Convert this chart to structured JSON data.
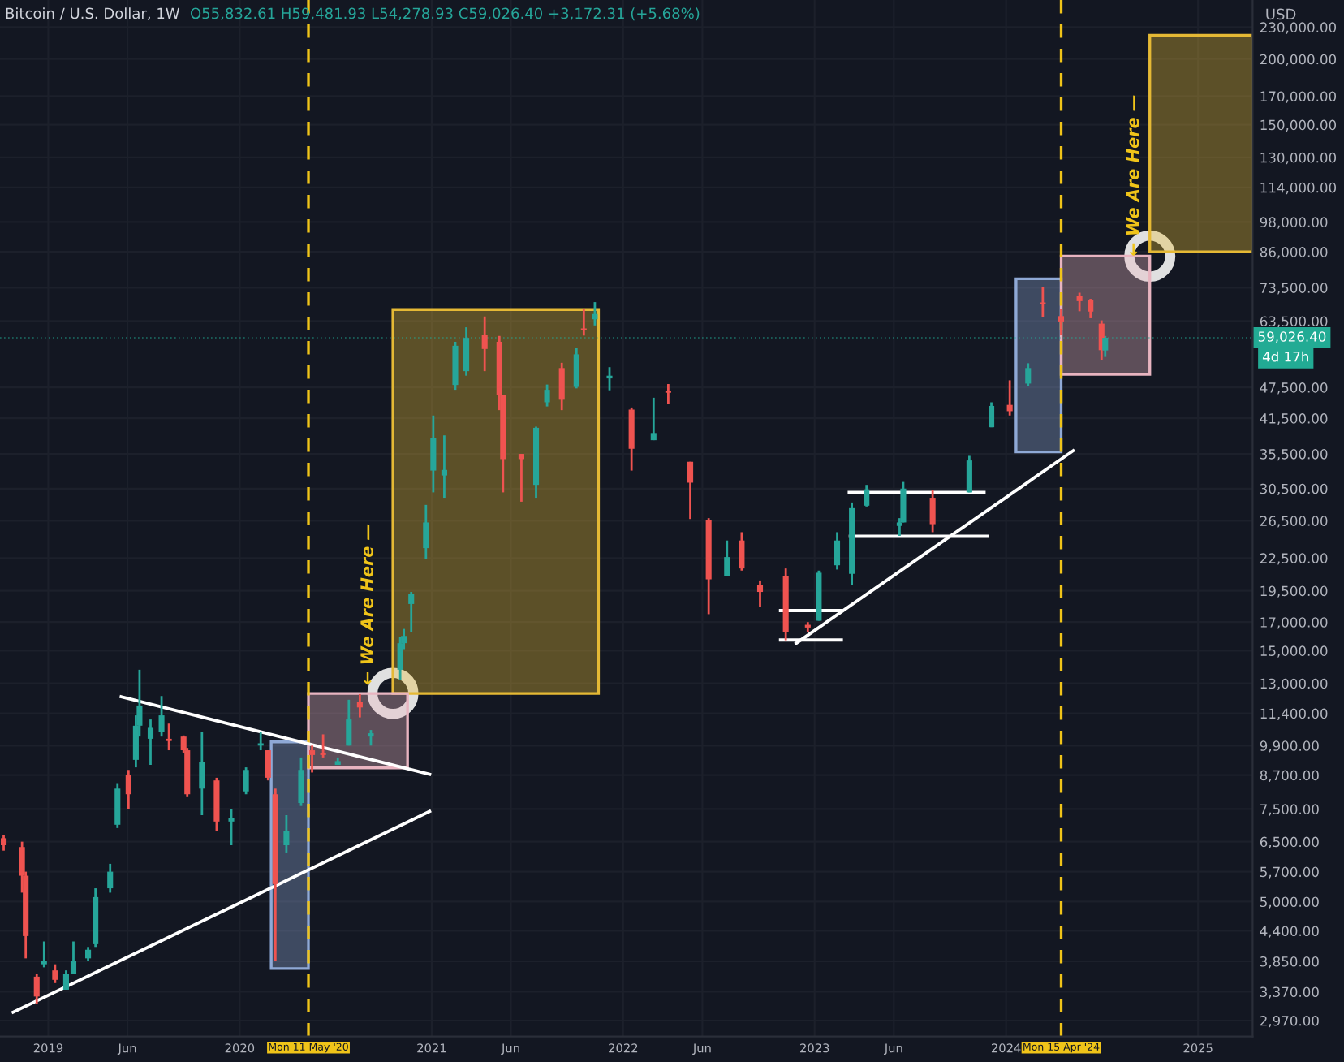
{
  "chart_data": {
    "type": "candlestick",
    "title": "Bitcoin / U.S. Dollar, 1W",
    "subtitle": "O55,832.61 H59,481.93 L54,278.93 C59,026.40 +3,172.31 (+5.68%)",
    "log": "y",
    "grid": true,
    "xlim": [
      "2018-10-01",
      "2025-04-15"
    ],
    "ylim": [
      2770,
      259000
    ],
    "xticks": [
      {
        "value": "2019-01-01",
        "label": "2019"
      },
      {
        "value": "2019-06-01",
        "label": "Jun"
      },
      {
        "value": "2020-01-01",
        "label": "2020"
      },
      {
        "value": "2021-01-01",
        "label": "2021"
      },
      {
        "value": "2021-06-01",
        "label": "Jun"
      },
      {
        "value": "2022-01-01",
        "label": "2022"
      },
      {
        "value": "2022-06-01",
        "label": "Jun"
      },
      {
        "value": "2023-01-01",
        "label": "2023"
      },
      {
        "value": "2023-06-01",
        "label": "Jun"
      },
      {
        "value": "2024-01-01",
        "label": "2024"
      },
      {
        "value": "2025-01-01",
        "label": "2025"
      }
    ],
    "yticks": [
      {
        "value": 230000,
        "label": "230,000.00"
      },
      {
        "value": 200000,
        "label": "200,000.00"
      },
      {
        "value": 170000,
        "label": "170,000.00"
      },
      {
        "value": 150000,
        "label": "150,000.00"
      },
      {
        "value": 130000,
        "label": "130,000.00"
      },
      {
        "value": 114000,
        "label": "114,000.00"
      },
      {
        "value": 98000,
        "label": "98,000.00"
      },
      {
        "value": 86000,
        "label": "86,000.00"
      },
      {
        "value": 73500,
        "label": "73,500.00"
      },
      {
        "value": 63500,
        "label": "63,500.00"
      },
      {
        "value": 47500,
        "label": "47,500.00"
      },
      {
        "value": 41500,
        "label": "41,500.00"
      },
      {
        "value": 35500,
        "label": "35,500.00"
      },
      {
        "value": 30500,
        "label": "30,500.00"
      },
      {
        "value": 26500,
        "label": "26,500.00"
      },
      {
        "value": 22500,
        "label": "22,500.00"
      },
      {
        "value": 19500,
        "label": "19,500.00"
      },
      {
        "value": 17000,
        "label": "17,000.00"
      },
      {
        "value": 15000,
        "label": "15,000.00"
      },
      {
        "value": 13000,
        "label": "13,000.00"
      },
      {
        "value": 11400,
        "label": "11,400.00"
      },
      {
        "value": 9900,
        "label": "9,900.00"
      },
      {
        "value": 8700,
        "label": "8,700.00"
      },
      {
        "value": 7500,
        "label": "7,500.00"
      },
      {
        "value": 6500,
        "label": "6,500.00"
      },
      {
        "value": 5700,
        "label": "5,700.00"
      },
      {
        "value": 5000,
        "label": "5,000.00"
      },
      {
        "value": 4400,
        "label": "4,400.00"
      },
      {
        "value": 3850,
        "label": "3,850.00"
      },
      {
        "value": 3370,
        "label": "3,370.00"
      },
      {
        "value": 2970,
        "label": "2,970.00"
      }
    ],
    "series": [
      {
        "type": "area",
        "x": [
          "2020-03-01",
          "2020-03-01",
          "2020-05-11",
          "2020-05-11",
          "2020-03-01"
        ],
        "values": [
          3730,
          10060,
          10060,
          3730,
          3730
        ],
        "color": "#8fa9d6"
      },
      {
        "type": "area",
        "x": [
          "2020-10-19",
          "2020-10-19",
          "2021-11-15",
          "2021-11-15",
          "2020-10-19"
        ],
        "values": [
          12440,
          66800,
          66800,
          12440,
          12440
        ],
        "color": "#e5b935"
      },
      {
        "type": "area",
        "x": [
          "2020-05-11",
          "2020-05-11",
          "2020-11-16",
          "2020-11-16",
          "2020-05-11"
        ],
        "values": [
          8980,
          12440,
          12440,
          8980,
          8980
        ],
        "color": "#e8b4c0"
      },
      {
        "type": "area",
        "x": [
          "2024-01-20",
          "2024-01-20",
          "2024-04-15",
          "2024-04-15",
          "2024-01-20"
        ],
        "values": [
          35800,
          76400,
          76400,
          35800,
          35800
        ],
        "color": "#8fa9d6"
      },
      {
        "type": "area",
        "x": [
          "2024-04-15",
          "2024-04-15",
          "2024-10-01",
          "2024-10-01",
          "2024-04-15"
        ],
        "values": [
          50300,
          84400,
          84400,
          50300,
          50300
        ],
        "color": "#e8b4c0"
      },
      {
        "type": "area",
        "x": [
          "2024-10-01",
          "2024-10-01",
          "2025-04-15",
          "2025-04-15",
          "2024-10-01"
        ],
        "values": [
          86000,
          222000,
          222000,
          86000,
          86000
        ],
        "color": "#e5b935"
      },
      {
        "x": [
          "2018-10-08",
          "2018-11-12",
          "2018-11-19",
          "2018-12-10",
          "2018-12-24",
          "2019-01-14",
          "2019-02-04",
          "2019-02-18",
          "2019-03-18",
          "2019-04-01",
          "2019-04-29",
          "2019-05-13",
          "2019-06-03",
          "2019-06-17",
          "2019-06-24",
          "2019-07-15",
          "2019-08-05",
          "2019-08-19",
          "2019-09-16",
          "2019-09-23",
          "2019-10-21",
          "2019-11-18",
          "2019-12-16",
          "2020-01-13",
          "2020-02-10",
          "2020-02-24",
          "2020-03-09",
          "2020-03-30",
          "2020-04-27",
          "2020-05-18",
          "2020-06-08",
          "2020-07-06",
          "2020-07-27",
          "2020-08-17",
          "2020-09-07",
          "2020-11-02",
          "2020-11-09",
          "2020-11-23",
          "2020-12-21",
          "2021-01-04",
          "2021-01-25",
          "2021-02-15",
          "2021-03-08",
          "2021-04-12",
          "2021-05-10",
          "2021-05-17",
          "2021-06-21",
          "2021-07-19",
          "2021-08-09",
          "2021-09-06",
          "2021-10-04",
          "2021-10-18",
          "2021-11-08",
          "2021-12-06",
          "2022-01-17",
          "2022-02-28",
          "2022-03-28",
          "2022-05-09",
          "2022-06-13",
          "2022-07-18",
          "2022-08-15",
          "2022-09-19",
          "2022-11-07",
          "2022-12-19",
          "2023-01-09",
          "2023-02-13",
          "2023-03-13",
          "2023-04-10",
          "2023-06-12",
          "2023-06-19",
          "2023-08-14",
          "2023-10-23",
          "2023-12-04",
          "2024-01-08",
          "2024-02-12",
          "2024-03-11",
          "2024-04-15",
          "2024-05-20",
          "2024-06-10",
          "2024-07-01",
          "2024-07-08"
        ],
        "ohlc": [
          [
            6600,
            6700,
            6250,
            6400
          ],
          [
            6350,
            6500,
            5200,
            5600
          ],
          [
            5600,
            5700,
            3900,
            4300
          ],
          [
            3600,
            3650,
            3200,
            3300
          ],
          [
            3800,
            4200,
            3750,
            3850
          ],
          [
            3700,
            3800,
            3500,
            3550
          ],
          [
            3400,
            3700,
            3400,
            3650
          ],
          [
            3650,
            4200,
            3650,
            3850
          ],
          [
            3900,
            4100,
            3850,
            4050
          ],
          [
            4150,
            5300,
            4100,
            5100
          ],
          [
            5300,
            5900,
            5200,
            5700
          ],
          [
            7000,
            8400,
            6900,
            8200
          ],
          [
            8700,
            8900,
            7500,
            8000
          ],
          [
            9300,
            11300,
            9000,
            10800
          ],
          [
            10800,
            13800,
            10300,
            11800
          ],
          [
            10200,
            11100,
            9100,
            10700
          ],
          [
            10500,
            12300,
            10300,
            11300
          ],
          [
            10200,
            10900,
            9700,
            10100
          ],
          [
            10300,
            10350,
            9600,
            9700
          ],
          [
            9700,
            9800,
            7900,
            8000
          ],
          [
            8200,
            10500,
            7300,
            9200
          ],
          [
            8500,
            8600,
            6800,
            7100
          ],
          [
            7100,
            7500,
            6400,
            7200
          ],
          [
            8100,
            9000,
            8000,
            8900
          ],
          [
            9900,
            10500,
            9700,
            10000
          ],
          [
            9700,
            9700,
            8500,
            8600
          ],
          [
            8000,
            8200,
            3850,
            5400
          ],
          [
            6400,
            7300,
            6200,
            6800
          ],
          [
            7700,
            9400,
            7600,
            8900
          ],
          [
            9700,
            9900,
            8800,
            9500
          ],
          [
            9600,
            10400,
            9400,
            9500
          ],
          [
            9100,
            9400,
            9100,
            9250
          ],
          [
            9900,
            12100,
            9900,
            11100
          ],
          [
            12000,
            12400,
            11200,
            11700
          ],
          [
            10300,
            10600,
            9900,
            10450
          ],
          [
            13800,
            15900,
            13200,
            15500
          ],
          [
            15500,
            16500,
            15100,
            16000
          ],
          [
            18400,
            19400,
            16300,
            19200
          ],
          [
            23500,
            28400,
            22400,
            26300
          ],
          [
            33000,
            42000,
            30000,
            38000
          ],
          [
            32300,
            38500,
            29300,
            33100
          ],
          [
            48000,
            58000,
            47000,
            57000
          ],
          [
            51000,
            61800,
            50000,
            59000
          ],
          [
            59800,
            64800,
            51000,
            56200
          ],
          [
            58000,
            59500,
            43000,
            46000
          ],
          [
            46000,
            46000,
            30000,
            34700
          ],
          [
            35500,
            35500,
            28800,
            34700
          ],
          [
            31000,
            40000,
            29300,
            39800
          ],
          [
            44500,
            48100,
            43700,
            47000
          ],
          [
            51700,
            52900,
            43000,
            45000
          ],
          [
            47600,
            56500,
            47300,
            54900
          ],
          [
            61500,
            66900,
            59600,
            61000
          ],
          [
            64000,
            69000,
            62300,
            65500
          ],
          [
            49400,
            51900,
            46900,
            50000
          ],
          [
            43100,
            43500,
            33000,
            36300
          ],
          [
            37700,
            45400,
            37700,
            38900
          ],
          [
            46800,
            48200,
            44200,
            46400
          ],
          [
            34300,
            34300,
            26700,
            31300
          ],
          [
            26600,
            26800,
            17600,
            20500
          ],
          [
            20800,
            24300,
            20800,
            22600
          ],
          [
            24300,
            25200,
            21300,
            21500
          ],
          [
            20000,
            20400,
            18200,
            19400
          ],
          [
            20800,
            21500,
            15700,
            16300
          ],
          [
            16800,
            17000,
            16300,
            16600
          ],
          [
            17100,
            21300,
            17100,
            21100
          ],
          [
            21800,
            25200,
            21400,
            24300
          ],
          [
            21000,
            28700,
            20000,
            28000
          ],
          [
            28300,
            31000,
            28200,
            30400
          ],
          [
            25900,
            26800,
            24800,
            26300
          ],
          [
            26300,
            31400,
            26300,
            30500
          ],
          [
            29300,
            30300,
            25200,
            26100
          ],
          [
            30000,
            35200,
            30000,
            34500
          ],
          [
            39900,
            44500,
            39900,
            43800
          ],
          [
            44000,
            49000,
            42000,
            42800
          ],
          [
            48300,
            52800,
            47800,
            51700
          ],
          [
            68900,
            73800,
            64600,
            68300
          ],
          [
            64900,
            66900,
            59700,
            63400
          ],
          [
            71000,
            71900,
            66300,
            69300
          ],
          [
            69600,
            70000,
            64300,
            66200
          ],
          [
            62800,
            63700,
            53500,
            55900
          ],
          [
            55832.61,
            59481.93,
            54278.93,
            59026.4
          ]
        ],
        "colors": [
          "#ef5350",
          "#ef5350",
          "#ef5350",
          "#ef5350",
          "#26a69a",
          "#ef5350",
          "#26a69a",
          "#26a69a",
          "#26a69a",
          "#26a69a",
          "#26a69a",
          "#26a69a",
          "#ef5350",
          "#26a69a",
          "#26a69a",
          "#26a69a",
          "#26a69a",
          "#ef5350",
          "#ef5350",
          "#ef5350",
          "#26a69a",
          "#ef5350",
          "#26a69a",
          "#26a69a",
          "#26a69a",
          "#ef5350",
          "#ef5350",
          "#26a69a",
          "#26a69a",
          "#ef5350",
          "#ef5350",
          "#26a69a",
          "#26a69a",
          "#ef5350",
          "#26a69a",
          "#26a69a",
          "#26a69a",
          "#26a69a",
          "#26a69a",
          "#26a69a",
          "#26a69a",
          "#26a69a",
          "#26a69a",
          "#ef5350",
          "#ef5350",
          "#ef5350",
          "#ef5350",
          "#26a69a",
          "#26a69a",
          "#ef5350",
          "#26a69a",
          "#ef5350",
          "#26a69a",
          "#26a69a",
          "#ef5350",
          "#26a69a",
          "#ef5350",
          "#ef5350",
          "#ef5350",
          "#26a69a",
          "#ef5350",
          "#ef5350",
          "#ef5350",
          "#ef5350",
          "#26a69a",
          "#26a69a",
          "#26a69a",
          "#26a69a",
          "#26a69a",
          "#26a69a",
          "#ef5350",
          "#26a69a",
          "#26a69a",
          "#ef5350",
          "#26a69a",
          "#ef5350",
          "#ef5350",
          "#ef5350",
          "#ef5350",
          "#ef5350",
          "#26a69a"
        ]
      },
      {
        "type": "line",
        "x": [
          "2019-05-20",
          "2020-12-28"
        ],
        "values": [
          12260,
          8730
        ],
        "color": "#ffffff"
      },
      {
        "type": "line",
        "x": [
          "2018-10-26",
          "2020-12-28"
        ],
        "values": [
          3080,
          7420
        ],
        "color": "#ffffff"
      },
      {
        "type": "line",
        "x": [
          "2022-11-27",
          "2024-05-08"
        ],
        "values": [
          15500,
          36000
        ],
        "color": "#ffffff"
      },
      {
        "type": "line",
        "x": [
          "2022-10-28",
          "2023-02-21"
        ],
        "values": [
          17880,
          17880
        ],
        "color": "#ffffff"
      },
      {
        "type": "line",
        "x": [
          "2022-10-28",
          "2023-02-21"
        ],
        "values": [
          15720,
          15720
        ],
        "color": "#ffffff"
      },
      {
        "type": "line",
        "x": [
          "2023-03-08",
          "2023-11-20"
        ],
        "values": [
          30000,
          30000
        ],
        "color": "#ffffff"
      },
      {
        "type": "line",
        "x": [
          "2023-03-10",
          "2023-11-26"
        ],
        "values": [
          24750,
          24750
        ],
        "color": "#ffffff"
      },
      {
        "type": "scatter",
        "x": [
          "2020-10-19",
          "2024-10-01"
        ],
        "values": [
          12440,
          84400
        ],
        "color": "#e0e0e0",
        "marker": "circle"
      }
    ],
    "ref_lines": [
      {
        "axis": "x",
        "value": "2020-05-11",
        "label": "Mon 11 May '20",
        "color": "#f0c419",
        "line_style": "dashed"
      },
      {
        "axis": "x",
        "value": "2024-04-15",
        "label": "Mon 15 Apr '24",
        "color": "#f0c419",
        "line_style": "dashed"
      },
      {
        "axis": "y",
        "value": 59026.4,
        "label": "59,026.40",
        "color": "#22ab94",
        "line_style": "dotted"
      }
    ],
    "annotations": [
      "USD",
      "4d 17h",
      "← We Are Here —",
      "← We Are Here —"
    ]
  }
}
